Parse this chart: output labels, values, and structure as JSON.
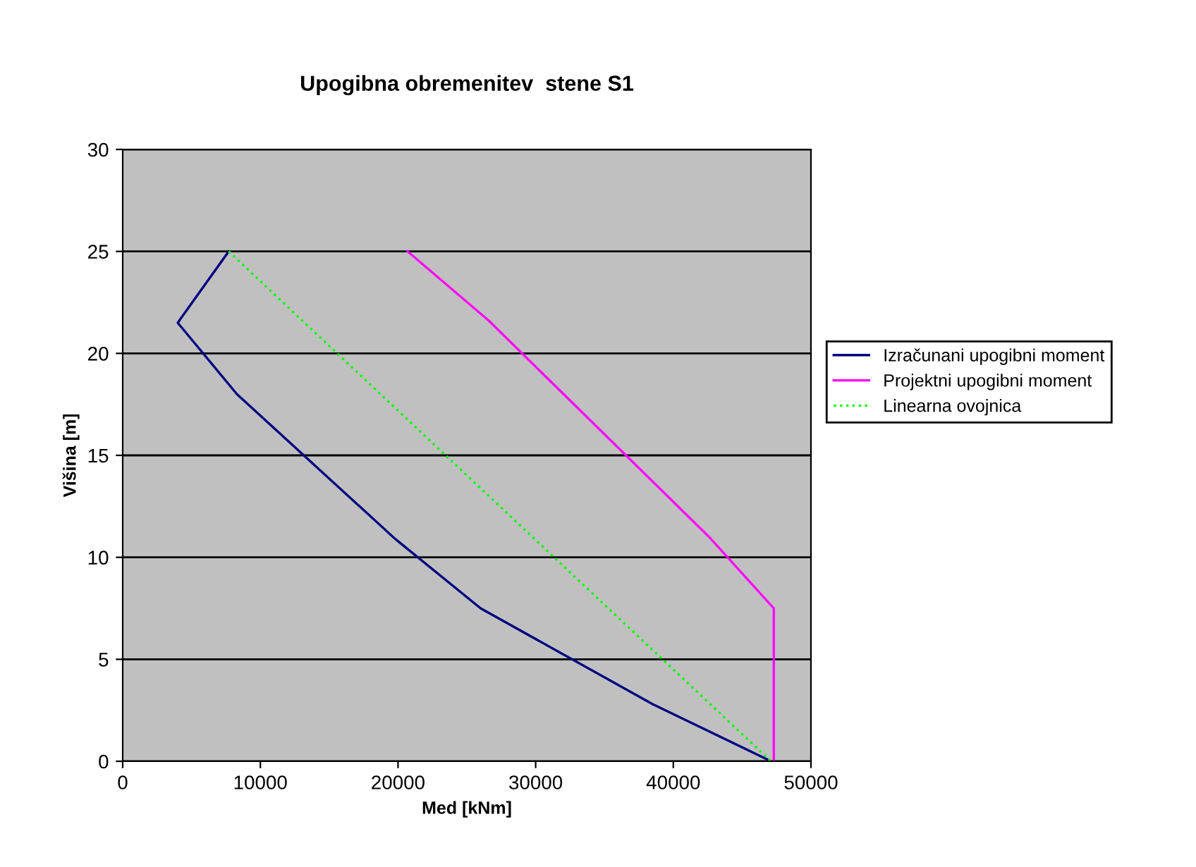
{
  "chart_data": {
    "type": "line",
    "title": "Upogibna obremenitev  stene S1",
    "xlabel": "Med [kNm]",
    "ylabel": "Višina [m]",
    "series": [
      {
        "name": "Izračunani upogibni moment",
        "color": "#000080",
        "x": [
          7700,
          4000,
          8300,
          19800,
          26000,
          38500,
          47100
        ],
        "values": [
          25,
          21.5,
          18,
          10.9,
          7.5,
          2.8,
          0
        ],
        "line_style": "solid"
      },
      {
        "name": "Projektni upogibni moment",
        "color": "#ff00ff",
        "x": [
          20700,
          26600,
          42600,
          47300,
          47300
        ],
        "values": [
          25,
          21.6,
          11,
          7.5,
          0
        ],
        "line_style": "solid"
      },
      {
        "name": "Linearna ovojnica",
        "color": "#00ff00",
        "x": [
          7700,
          47100
        ],
        "values": [
          25,
          0
        ],
        "line_style": "dotted"
      }
    ],
    "xlim": [
      0,
      50000
    ],
    "xticks": [
      0,
      10000,
      20000,
      30000,
      40000,
      50000
    ],
    "ylim": [
      0,
      30
    ],
    "yticks": [
      0,
      5,
      10,
      15,
      20,
      25,
      30
    ],
    "grid": "y",
    "legend": "right",
    "marker": "none"
  }
}
